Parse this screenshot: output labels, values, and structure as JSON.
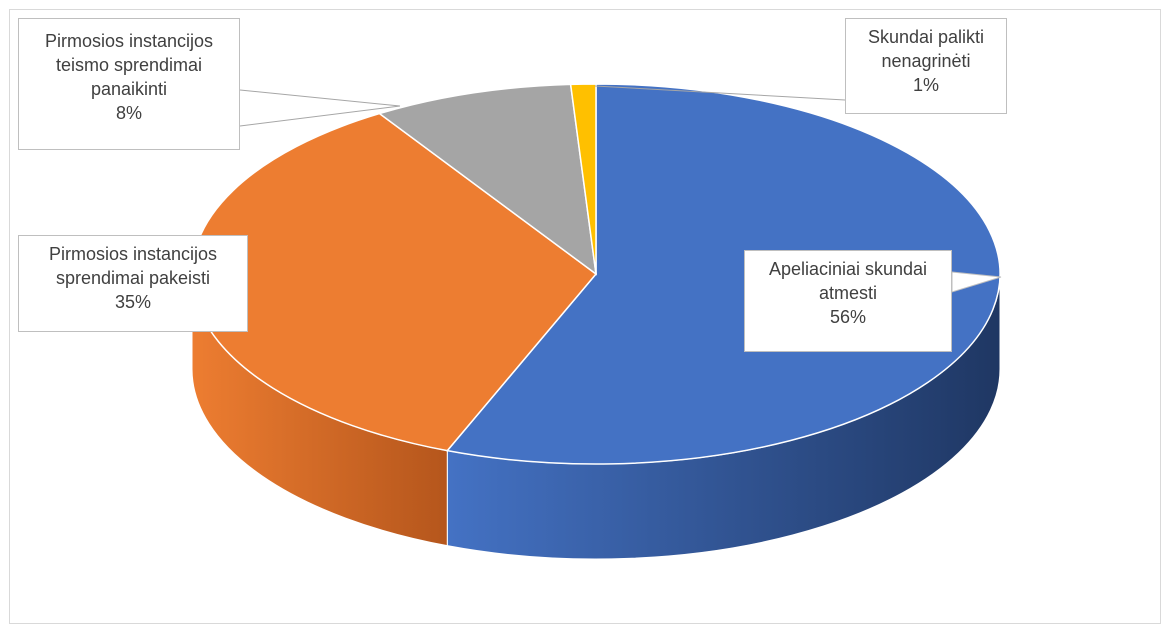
{
  "chart_data": {
    "type": "pie",
    "style": "3d",
    "slices": [
      {
        "key": "atmesti",
        "label_lines": [
          "Apeliaciniai skundai",
          "atmesti"
        ],
        "value": 56,
        "value_label": "56%",
        "color": "#4472c4",
        "side_color": "#1f3763"
      },
      {
        "key": "pakeisti",
        "label_lines": [
          "Pirmosios instancijos",
          "sprendimai pakeisti"
        ],
        "value": 35,
        "value_label": "35%",
        "color": "#ed7d31",
        "side_color": "#b5561c"
      },
      {
        "key": "panaikinti",
        "label_lines": [
          "Pirmosios instancijos",
          "teismo sprendimai",
          "panaikinti"
        ],
        "value": 8,
        "value_label": "8%",
        "color": "#a5a5a5",
        "side_color": "#7a7a7a"
      },
      {
        "key": "nenagrineti",
        "label_lines": [
          "Skundai palikti",
          "nenagrinėti"
        ],
        "value": 1,
        "value_label": "1%",
        "color": "#ffc000",
        "side_color": "#bf9000"
      }
    ],
    "legend": "none",
    "data_labels": "callouts"
  }
}
